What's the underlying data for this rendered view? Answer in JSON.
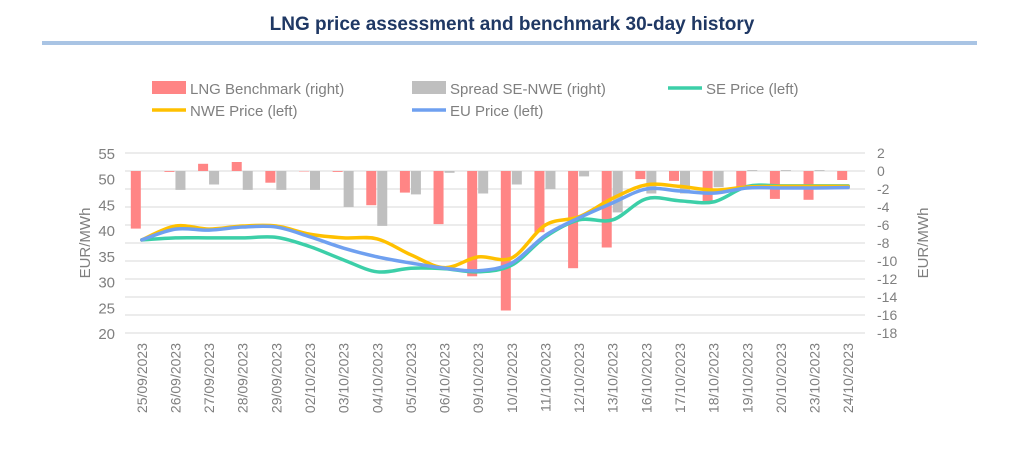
{
  "chart_data": {
    "type": "bar+line",
    "title": "LNG price assessment and benchmark 30-day history",
    "ylabel_left": "EUR/MWh",
    "ylabel_right": "EUR/MWh",
    "ylim_left": [
      20,
      55
    ],
    "yticks_left": [
      55,
      50,
      45,
      40,
      35,
      30,
      25,
      20
    ],
    "ylim_right": [
      -18,
      2
    ],
    "yticks_right": [
      2,
      0,
      -2,
      -4,
      -6,
      -8,
      -10,
      -12,
      -14,
      -16,
      -18
    ],
    "grid": true,
    "legend": "top",
    "categories": [
      "25/09/2023",
      "26/09/2023",
      "27/09/2023",
      "28/09/2023",
      "29/09/2023",
      "02/10/2023",
      "03/10/2023",
      "04/10/2023",
      "05/10/2023",
      "06/10/2023",
      "09/10/2023",
      "10/10/2023",
      "11/10/2023",
      "12/10/2023",
      "13/10/2023",
      "16/10/2023",
      "17/10/2023",
      "18/10/2023",
      "19/10/2023",
      "20/10/2023",
      "23/10/2023",
      "24/10/2023"
    ],
    "series": [
      {
        "name": "LNG Benchmark (right)",
        "type": "bar",
        "axis": "right",
        "color": "#ff8585",
        "values": [
          -6.4,
          -0.1,
          0.8,
          1.0,
          -1.3,
          -0.05,
          -0.1,
          -3.8,
          -2.4,
          -5.9,
          -11.7,
          -15.5,
          -6.8,
          -10.8,
          -8.5,
          -0.9,
          -1.1,
          -3.5,
          -1.8,
          -3.1,
          -3.2,
          -1.0
        ]
      },
      {
        "name": "Spread SE-NWE (right)",
        "type": "bar",
        "axis": "right",
        "color": "#bfbfbf",
        "values": [
          0,
          -2.1,
          -1.5,
          -2.1,
          -2.1,
          -2.1,
          -4.0,
          -6.1,
          -2.6,
          -0.2,
          -2.5,
          -1.5,
          -2.0,
          -0.6,
          -4.6,
          -2.5,
          -2.5,
          -1.8,
          0.1,
          0.1,
          0.1,
          0
        ]
      },
      {
        "name": "SE Price (left)",
        "type": "line",
        "axis": "left",
        "color": "#3ccfa8",
        "values": [
          38.1,
          38.5,
          38.5,
          38.5,
          38.6,
          36.8,
          34.2,
          31.9,
          32.6,
          32.5,
          31.9,
          33.2,
          38.7,
          42.0,
          42.0,
          46.1,
          45.7,
          45.5,
          48.5,
          48.6,
          48.6,
          48.6
        ]
      },
      {
        "name": "NWE Price (left)",
        "type": "line",
        "axis": "left",
        "color": "#ffc000",
        "values": [
          38.1,
          40.8,
          40.2,
          40.8,
          40.8,
          39.2,
          38.5,
          38.3,
          35.2,
          32.7,
          34.8,
          34.6,
          41.0,
          42.6,
          46.2,
          48.8,
          48.5,
          47.8,
          48.4,
          48.5,
          48.5,
          48.5
        ]
      },
      {
        "name": "EU Price (left)",
        "type": "line",
        "axis": "left",
        "color": "#6fa0f0",
        "values": [
          38.1,
          40.2,
          40.0,
          40.6,
          40.6,
          38.7,
          36.5,
          34.8,
          33.6,
          32.6,
          32.1,
          33.6,
          39.0,
          42.4,
          45.3,
          48.0,
          47.6,
          47.2,
          48.2,
          48.2,
          48.2,
          48.3
        ]
      }
    ]
  }
}
